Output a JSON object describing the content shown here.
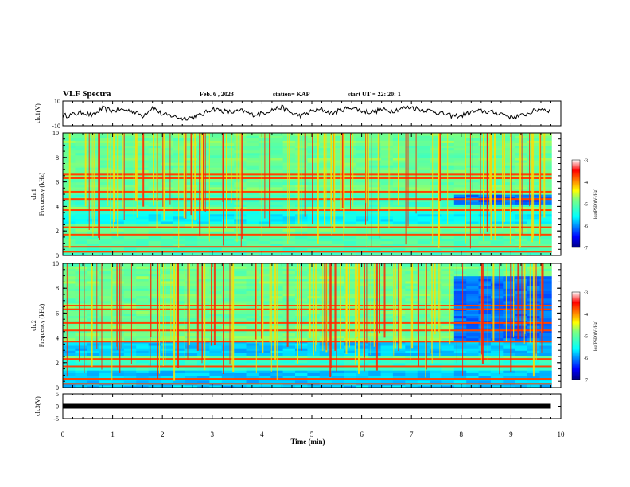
{
  "header": {
    "title": "VLF Spectra",
    "date": "Feb. 6 , 2023",
    "station": "station= KAP",
    "start_ut": "start UT =  22: 20: 1"
  },
  "chart_data": [
    {
      "type": "line",
      "panel": "ch1",
      "ylabel": "ch.1(V)",
      "ylim": [
        -10,
        10
      ],
      "yticks": [
        "10",
        "-10"
      ],
      "x": [
        0,
        0.2,
        0.4,
        0.6,
        0.8,
        1.0,
        1.2,
        1.4,
        1.6,
        1.8,
        2.0,
        2.2,
        2.4,
        2.6,
        2.8,
        3.0,
        3.2,
        3.4,
        3.6,
        3.8,
        4.0,
        4.2,
        4.4,
        4.6,
        4.8,
        5.0,
        5.2,
        5.4,
        5.6,
        5.8,
        6.0,
        6.2,
        6.4,
        6.6,
        6.8,
        7.0,
        7.2,
        7.4,
        7.6,
        7.8,
        8.0,
        8.2,
        8.4,
        8.6,
        8.8,
        9.0,
        9.2,
        9.4,
        9.6,
        9.8
      ],
      "y": [
        -2,
        -1,
        1,
        -2,
        4,
        2,
        3,
        2,
        -2,
        5,
        -1,
        -2,
        -4,
        -3,
        -1,
        4,
        2,
        1,
        2,
        -1,
        0,
        3,
        5,
        0,
        -2,
        2,
        3,
        0,
        3,
        5,
        2,
        1,
        3,
        2,
        4,
        5,
        3,
        2,
        0,
        -2,
        -2,
        1,
        2,
        1,
        0,
        -3,
        -2,
        1,
        4,
        2
      ]
    },
    {
      "type": "heatmap",
      "panel": "ch1",
      "ylabel": "ch.1\nFrequency (kHz)",
      "ylim": [
        0,
        10
      ],
      "yticks": [
        "0",
        "2",
        "4",
        "6",
        "8",
        "10"
      ],
      "colorbar": {
        "label": "log(PSD)(V²/Hz)",
        "range": [
          -7,
          -3
        ],
        "ticks": [
          "-3",
          "-4",
          "-5",
          "-6",
          "-7"
        ]
      }
    },
    {
      "type": "heatmap",
      "panel": "ch2",
      "ylabel": "ch.2\nFrequency (kHz)",
      "ylim": [
        0,
        10
      ],
      "yticks": [
        "0",
        "2",
        "4",
        "6",
        "8",
        "10"
      ],
      "colorbar": {
        "label": "log(PSD)(V²/Hz)",
        "range": [
          -7,
          -3
        ],
        "ticks": [
          "-3",
          "-4",
          "-5",
          "-6",
          "-7"
        ]
      }
    },
    {
      "type": "line",
      "panel": "ch3",
      "ylabel": "ch.3(V)",
      "ylim": [
        -5,
        5
      ],
      "yticks": [
        "5",
        "0",
        "-5"
      ],
      "x": [
        0,
        9.8
      ],
      "y": [
        0,
        0
      ]
    }
  ],
  "xaxis": {
    "label": "Time (min)",
    "range": [
      0,
      10
    ],
    "ticks": [
      "0",
      "1",
      "2",
      "3",
      "4",
      "5",
      "6",
      "7",
      "8",
      "9",
      "10"
    ]
  }
}
